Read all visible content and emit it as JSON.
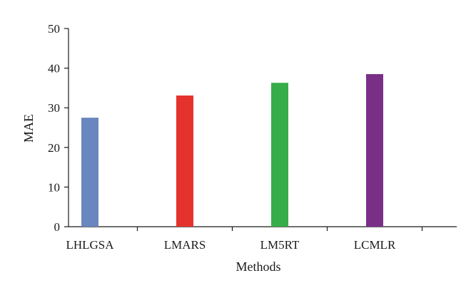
{
  "chart_data": {
    "type": "bar",
    "title": "",
    "xlabel": "Methods",
    "ylabel": "MAE",
    "categories": [
      "LHLGSA",
      "LMARS",
      "LM5RT",
      "LCMLR"
    ],
    "values": [
      27.5,
      33.1,
      36.3,
      38.5
    ],
    "colors": [
      "#6a86be",
      "#e5322d",
      "#37ad4a",
      "#7a2f87"
    ],
    "ylim": [
      0,
      50
    ],
    "yticks": [
      0,
      10,
      20,
      30,
      40,
      50
    ],
    "grid": false,
    "legend": "none"
  }
}
